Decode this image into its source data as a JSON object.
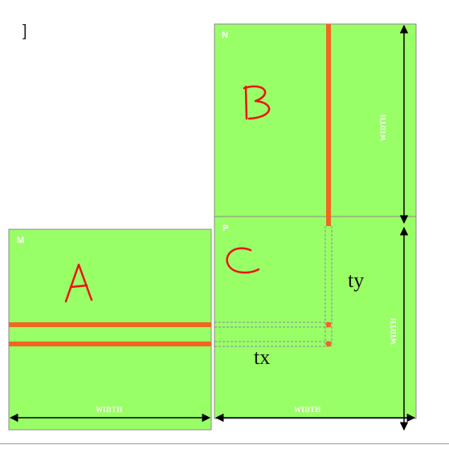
{
  "figure": {
    "corner_glyph": "]",
    "matrices": {
      "n": {
        "label": "N",
        "letter": "B"
      },
      "m": {
        "label": "M",
        "letter": "A"
      },
      "p": {
        "label": "P",
        "letter": "C"
      }
    },
    "width_label": "WIDTH",
    "index_labels": {
      "tx": "tx",
      "ty": "ty"
    },
    "colors": {
      "matrix_fill": "#99ff66",
      "matrix_border": "#8a8a8a",
      "highlight": "#f26522",
      "handwriting": "#ee1111",
      "arrow": "#000000",
      "dashed": "#8888aa"
    }
  }
}
